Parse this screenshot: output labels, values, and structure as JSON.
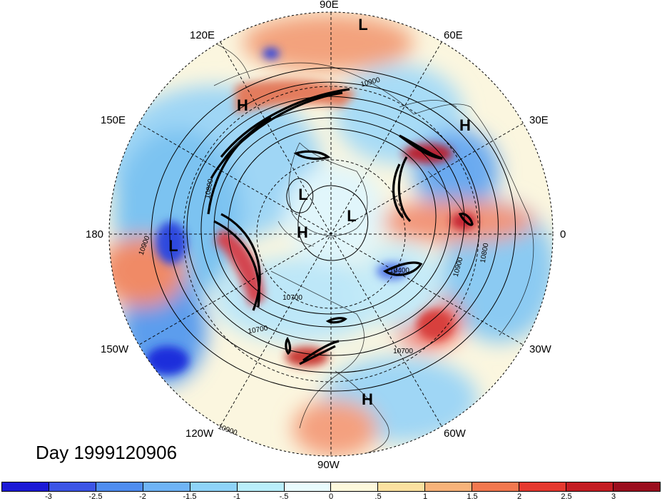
{
  "map": {
    "title": "Day 1999120906",
    "projection": "north-polar-stereographic",
    "longitude_labels": [
      "90E",
      "60E",
      "30E",
      "0",
      "30W",
      "60W",
      "90W",
      "120W",
      "150W",
      "180",
      "150E",
      "120E"
    ],
    "pressure_systems": [
      {
        "type": "L",
        "region": "90E edge"
      },
      {
        "type": "H",
        "region": "near 120E"
      },
      {
        "type": "H",
        "region": "near 30E"
      },
      {
        "type": "L",
        "region": "near pole, 120W-150E side"
      },
      {
        "type": "L",
        "region": "near pole"
      },
      {
        "type": "H",
        "region": "near pole"
      },
      {
        "type": "L",
        "region": "near 180"
      },
      {
        "type": "H",
        "region": "near 60W-90W"
      }
    ],
    "contour_labels": [
      "10900",
      "10900",
      "10800",
      "10700",
      "10400",
      "10900",
      "10800",
      "10700",
      "10700",
      "10900"
    ]
  },
  "colorbar": {
    "ticks": [
      "-3",
      "-2.5",
      "-2",
      "-1.5",
      "-1",
      "-.5",
      "0",
      ".5",
      "1",
      "1.5",
      "2",
      "2.5",
      "3"
    ],
    "colors": [
      "#1c1ad6",
      "#3c55e6",
      "#4f8df0",
      "#6fb4f6",
      "#8ed3f8",
      "#b9eefa",
      "#e9fbfd",
      "#fdf8dc",
      "#fbe1a0",
      "#f7b37a",
      "#f2784f",
      "#e5392f",
      "#c41d23",
      "#9b0e1e"
    ]
  }
}
